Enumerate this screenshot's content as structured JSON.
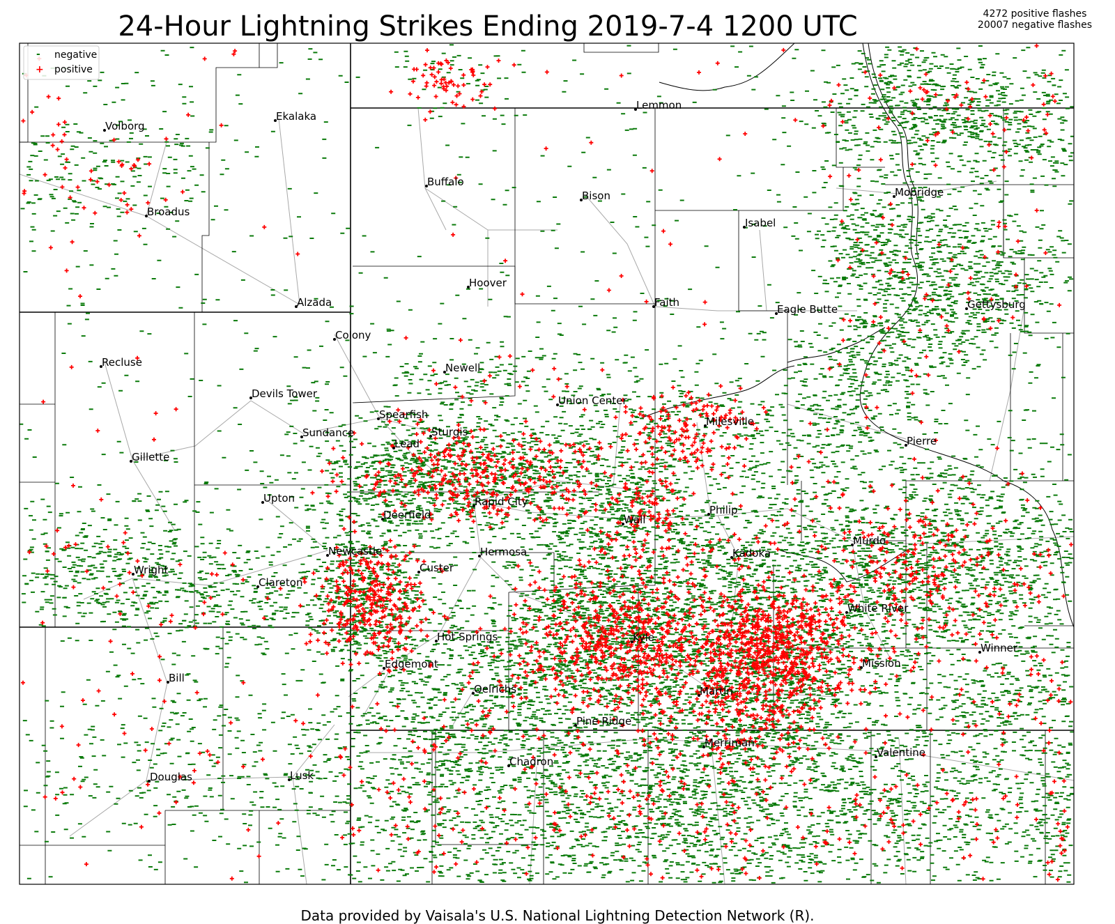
{
  "title": "24-Hour Lightning Strikes Ending 2019-7-4 1200 UTC",
  "summary": {
    "positive_count": "4272 positive flashes",
    "negative_count": "20007 negative flashes"
  },
  "credit": "Data provided by Vaisala's U.S. National Lightning Detection Network (R).",
  "legend": {
    "negative_label": "negative",
    "positive_label": "positive",
    "negative_symbol": "-",
    "positive_symbol": "+"
  },
  "colors": {
    "negative": "#0a7a0a",
    "positive": "#ff0000",
    "state_border": "#000000",
    "county_border": "#000000",
    "road": "#a8a8a8",
    "river": "#000000"
  },
  "cities": [
    {
      "name": "Volborg"
    },
    {
      "name": "Ekalaka"
    },
    {
      "name": "Broadus"
    },
    {
      "name": "Alzada"
    },
    {
      "name": "Lemmon"
    },
    {
      "name": "Buffalo"
    },
    {
      "name": "Bison"
    },
    {
      "name": "Isabel"
    },
    {
      "name": "Mobridge"
    },
    {
      "name": "Hoover"
    },
    {
      "name": "Faith"
    },
    {
      "name": "Eagle Butte"
    },
    {
      "name": "Gettysburg"
    },
    {
      "name": "Colony"
    },
    {
      "name": "Recluse"
    },
    {
      "name": "Newell"
    },
    {
      "name": "Devils Tower"
    },
    {
      "name": "Union Center"
    },
    {
      "name": "Spearfish"
    },
    {
      "name": "Milesville"
    },
    {
      "name": "Sundance"
    },
    {
      "name": "Sturgis"
    },
    {
      "name": "Lead"
    },
    {
      "name": "Pierre"
    },
    {
      "name": "Gillette"
    },
    {
      "name": "Upton"
    },
    {
      "name": "Rapid City"
    },
    {
      "name": "Deerfield"
    },
    {
      "name": "Philip"
    },
    {
      "name": "Wall"
    },
    {
      "name": "Murdo"
    },
    {
      "name": "Newcastle"
    },
    {
      "name": "Hermosa"
    },
    {
      "name": "Kadoka"
    },
    {
      "name": "Wright"
    },
    {
      "name": "Custer"
    },
    {
      "name": "Clareton"
    },
    {
      "name": "White River"
    },
    {
      "name": "Hot Springs"
    },
    {
      "name": "Kyle"
    },
    {
      "name": "Winner"
    },
    {
      "name": "Edgemont"
    },
    {
      "name": "Mission"
    },
    {
      "name": "Bill"
    },
    {
      "name": "Oelrichs"
    },
    {
      "name": "Martin"
    },
    {
      "name": "Pine Ridge"
    },
    {
      "name": "Merriman"
    },
    {
      "name": "Valentine"
    },
    {
      "name": "Chadron"
    },
    {
      "name": "Douglas"
    },
    {
      "name": "Lusk"
    }
  ]
}
